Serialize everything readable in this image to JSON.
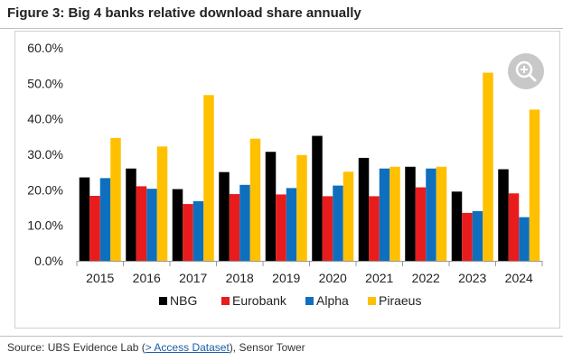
{
  "figure": {
    "title": "Figure 3: Big 4 banks relative download share annually"
  },
  "source": {
    "prefix": "Source: UBS Evidence Lab (",
    "link_label": "> Access Dataset",
    "suffix": "), Sensor Tower"
  },
  "colors": {
    "NBG": "#000000",
    "Eurobank": "#e81c1c",
    "Alpha": "#0f6fbf",
    "Piraeus": "#ffc000"
  },
  "chart_data": {
    "type": "bar",
    "title": "Figure 3: Big 4 banks relative download share annually",
    "xlabel": "",
    "ylabel": "",
    "ylim": [
      0,
      0.6
    ],
    "ytick_step": 0.1,
    "ytick_labels": [
      "0.0%",
      "10.0%",
      "20.0%",
      "30.0%",
      "40.0%",
      "50.0%",
      "60.0%"
    ],
    "grid": false,
    "legend_position": "bottom",
    "categories": [
      "2015",
      "2016",
      "2017",
      "2018",
      "2019",
      "2020",
      "2021",
      "2022",
      "2023",
      "2024"
    ],
    "series": [
      {
        "name": "NBG",
        "values": [
          0.235,
          0.26,
          0.202,
          0.25,
          0.307,
          0.352,
          0.29,
          0.265,
          0.195,
          0.258
        ]
      },
      {
        "name": "Eurobank",
        "values": [
          0.183,
          0.21,
          0.16,
          0.188,
          0.187,
          0.182,
          0.182,
          0.207,
          0.135,
          0.19
        ]
      },
      {
        "name": "Alpha",
        "values": [
          0.233,
          0.203,
          0.168,
          0.214,
          0.205,
          0.212,
          0.26,
          0.26,
          0.14,
          0.123
        ]
      },
      {
        "name": "Piraeus",
        "values": [
          0.346,
          0.322,
          0.467,
          0.344,
          0.298,
          0.251,
          0.265,
          0.265,
          0.53,
          0.426
        ]
      }
    ]
  }
}
